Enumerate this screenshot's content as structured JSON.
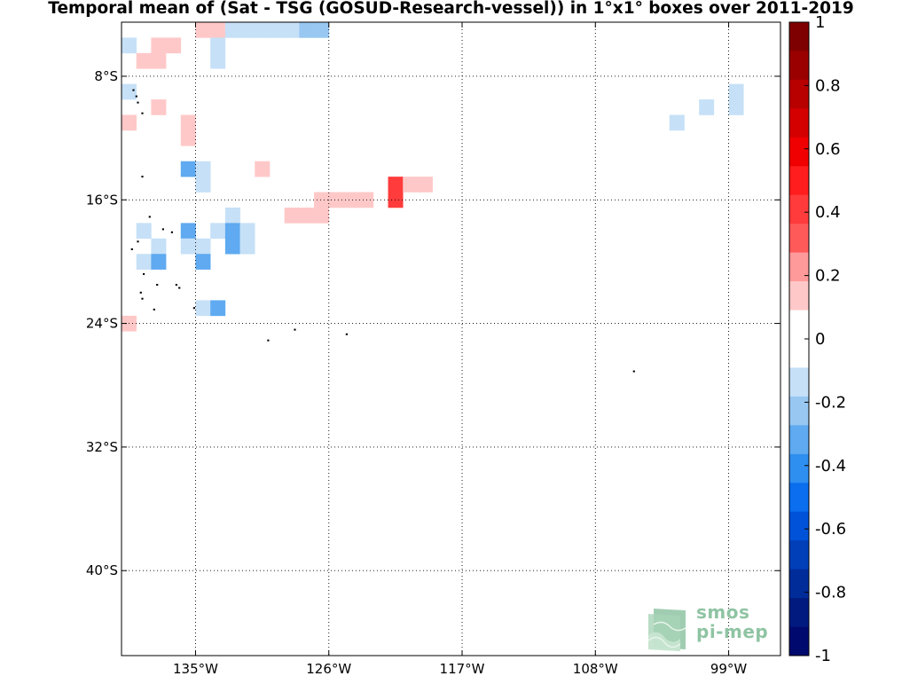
{
  "title": "Temporal mean of (Sat - TSG (GOSUD-Research-vessel)) in 1°x1° boxes over 2011-2019",
  "logo": {
    "line1": "smos",
    "line2": "pi-mep"
  },
  "chart_data": {
    "type": "heatmap",
    "title": "Temporal mean of (Sat - TSG (GOSUD-Research-vessel)) in 1°x1° boxes over 2011-2019",
    "projection": "equirectangular",
    "grid": true,
    "x_extent_lon": [
      -140,
      -95.5
    ],
    "y_extent_lat": [
      -4.5,
      -45.5
    ],
    "x_ticks": [
      {
        "lon": -135,
        "label": "135°W"
      },
      {
        "lon": -126,
        "label": "126°W"
      },
      {
        "lon": -117,
        "label": "117°W"
      },
      {
        "lon": -108,
        "label": "108°W"
      },
      {
        "lon": -99,
        "label": "99°W"
      }
    ],
    "y_ticks": [
      {
        "lat": -8,
        "label": "8°S"
      },
      {
        "lat": -16,
        "label": "16°S"
      },
      {
        "lat": -24,
        "label": "24°S"
      },
      {
        "lat": -32,
        "label": "32°S"
      },
      {
        "lat": -40,
        "label": "40°S"
      }
    ],
    "colorbar": {
      "min": -1,
      "max": 1,
      "ticks": [
        1,
        0.8,
        0.6,
        0.4,
        0.2,
        0,
        -0.2,
        -0.4,
        -0.6,
        -0.8,
        -1
      ],
      "tick_labels": [
        "1",
        "0.8",
        "0.6",
        "0.4",
        "0.2",
        "0",
        "-0.2",
        "-0.4",
        "-0.6",
        "-0.8",
        "-1"
      ],
      "colors_top_to_bottom": [
        "#7f0000",
        "#9a0000",
        "#b80000",
        "#d40000",
        "#f00000",
        "#ff1d1d",
        "#ff3b3b",
        "#ff5a5a",
        "#ff9a9a",
        "#ffc8c8",
        "#ffffff",
        "#ffffff",
        "#c6e0f7",
        "#98c7f2",
        "#5faaf0",
        "#2f8ff0",
        "#0a6eee",
        "#0053d8",
        "#003fb8",
        "#002c9a",
        "#001a80",
        "#000a6e"
      ]
    },
    "cells": [
      {
        "lon": -134.5,
        "lat": -5,
        "value": 0.15
      },
      {
        "lon": -133.5,
        "lat": -5,
        "value": 0.15
      },
      {
        "lon": -133.5,
        "lat": -6,
        "value": -0.1
      },
      {
        "lon": -132.5,
        "lat": -5,
        "value": -0.15
      },
      {
        "lon": -131.5,
        "lat": -5,
        "value": -0.15
      },
      {
        "lon": -130.5,
        "lat": -5,
        "value": -0.15
      },
      {
        "lon": -129.5,
        "lat": -5,
        "value": -0.15
      },
      {
        "lon": -128.5,
        "lat": -5,
        "value": -0.15
      },
      {
        "lon": -127.5,
        "lat": -5,
        "value": -0.2
      },
      {
        "lon": -126.5,
        "lat": -5,
        "value": -0.2
      },
      {
        "lon": -139.5,
        "lat": -6,
        "value": -0.1
      },
      {
        "lon": -137.5,
        "lat": -6,
        "value": 0.15
      },
      {
        "lon": -136.5,
        "lat": -6,
        "value": 0.15
      },
      {
        "lon": -138.5,
        "lat": -7,
        "value": 0.15
      },
      {
        "lon": -137.5,
        "lat": -7,
        "value": 0.15
      },
      {
        "lon": -133.5,
        "lat": -7,
        "value": -0.1
      },
      {
        "lon": -139.5,
        "lat": -9,
        "value": -0.1
      },
      {
        "lon": -137.5,
        "lat": -10,
        "value": 0.15
      },
      {
        "lon": -139.5,
        "lat": -11,
        "value": 0.15
      },
      {
        "lon": -135.5,
        "lat": -11,
        "value": 0.15
      },
      {
        "lon": -135.5,
        "lat": -12,
        "value": 0.15
      },
      {
        "lon": -135.5,
        "lat": -14,
        "value": -0.35
      },
      {
        "lon": -134.5,
        "lat": -14,
        "value": -0.15
      },
      {
        "lon": -134.5,
        "lat": -15,
        "value": -0.15
      },
      {
        "lon": -130.5,
        "lat": -14,
        "value": 0.15
      },
      {
        "lon": -121.5,
        "lat": -15,
        "value": 0.4
      },
      {
        "lon": -120.5,
        "lat": -15,
        "value": 0.15
      },
      {
        "lon": -119.5,
        "lat": -15,
        "value": 0.15
      },
      {
        "lon": -121.5,
        "lat": -16,
        "value": 0.4
      },
      {
        "lon": -126.5,
        "lat": -16,
        "value": 0.15
      },
      {
        "lon": -125.5,
        "lat": -16,
        "value": 0.15
      },
      {
        "lon": -124.5,
        "lat": -16,
        "value": 0.15
      },
      {
        "lon": -123.5,
        "lat": -16,
        "value": 0.15
      },
      {
        "lon": -128.5,
        "lat": -17,
        "value": 0.15
      },
      {
        "lon": -127.5,
        "lat": -17,
        "value": 0.15
      },
      {
        "lon": -126.5,
        "lat": -17,
        "value": 0.15
      },
      {
        "lon": -132.5,
        "lat": -17,
        "value": -0.15
      },
      {
        "lon": -138.5,
        "lat": -18,
        "value": -0.15
      },
      {
        "lon": -135.5,
        "lat": -18,
        "value": -0.35
      },
      {
        "lon": -133.5,
        "lat": -18,
        "value": -0.15
      },
      {
        "lon": -132.5,
        "lat": -18,
        "value": -0.3
      },
      {
        "lon": -131.5,
        "lat": -18,
        "value": -0.15
      },
      {
        "lon": -137.5,
        "lat": -19,
        "value": -0.15
      },
      {
        "lon": -135.5,
        "lat": -19,
        "value": -0.15
      },
      {
        "lon": -134.5,
        "lat": -19,
        "value": -0.15
      },
      {
        "lon": -132.5,
        "lat": -19,
        "value": -0.3
      },
      {
        "lon": -131.5,
        "lat": -19,
        "value": -0.15
      },
      {
        "lon": -138.5,
        "lat": -20,
        "value": -0.15
      },
      {
        "lon": -137.5,
        "lat": -20,
        "value": -0.35
      },
      {
        "lon": -134.5,
        "lat": -20,
        "value": -0.35
      },
      {
        "lon": -134.5,
        "lat": -23,
        "value": -0.15
      },
      {
        "lon": -133.5,
        "lat": -23,
        "value": -0.35
      },
      {
        "lon": -139.5,
        "lat": -24,
        "value": 0.15
      },
      {
        "lon": -98.5,
        "lat": -9,
        "value": -0.15
      },
      {
        "lon": -98.5,
        "lat": -10,
        "value": -0.15
      },
      {
        "lon": -100.5,
        "lat": -10,
        "value": -0.15
      },
      {
        "lon": -102.5,
        "lat": -11,
        "value": -0.15
      }
    ],
    "islands": [
      {
        "lon": -139.2,
        "lat": -8.9
      },
      {
        "lon": -139.0,
        "lat": -9.3
      },
      {
        "lon": -138.9,
        "lat": -9.7
      },
      {
        "lon": -138.6,
        "lat": -10.4
      },
      {
        "lon": -138.6,
        "lat": -14.5
      },
      {
        "lon": -138.1,
        "lat": -17.1
      },
      {
        "lon": -137.2,
        "lat": -17.9
      },
      {
        "lon": -136.6,
        "lat": -18.1
      },
      {
        "lon": -138.9,
        "lat": -18.7
      },
      {
        "lon": -139.3,
        "lat": -19.2
      },
      {
        "lon": -138.5,
        "lat": -20.8
      },
      {
        "lon": -137.6,
        "lat": -21.5
      },
      {
        "lon": -136.3,
        "lat": -21.5
      },
      {
        "lon": -136.1,
        "lat": -21.7
      },
      {
        "lon": -138.7,
        "lat": -22.0
      },
      {
        "lon": -138.6,
        "lat": -22.4
      },
      {
        "lon": -137.8,
        "lat": -23.1
      },
      {
        "lon": -135.1,
        "lat": -23.0
      },
      {
        "lon": -130.1,
        "lat": -25.1
      },
      {
        "lon": -128.3,
        "lat": -24.4
      },
      {
        "lon": -124.8,
        "lat": -24.7
      },
      {
        "lon": -105.4,
        "lat": -27.1
      }
    ]
  }
}
